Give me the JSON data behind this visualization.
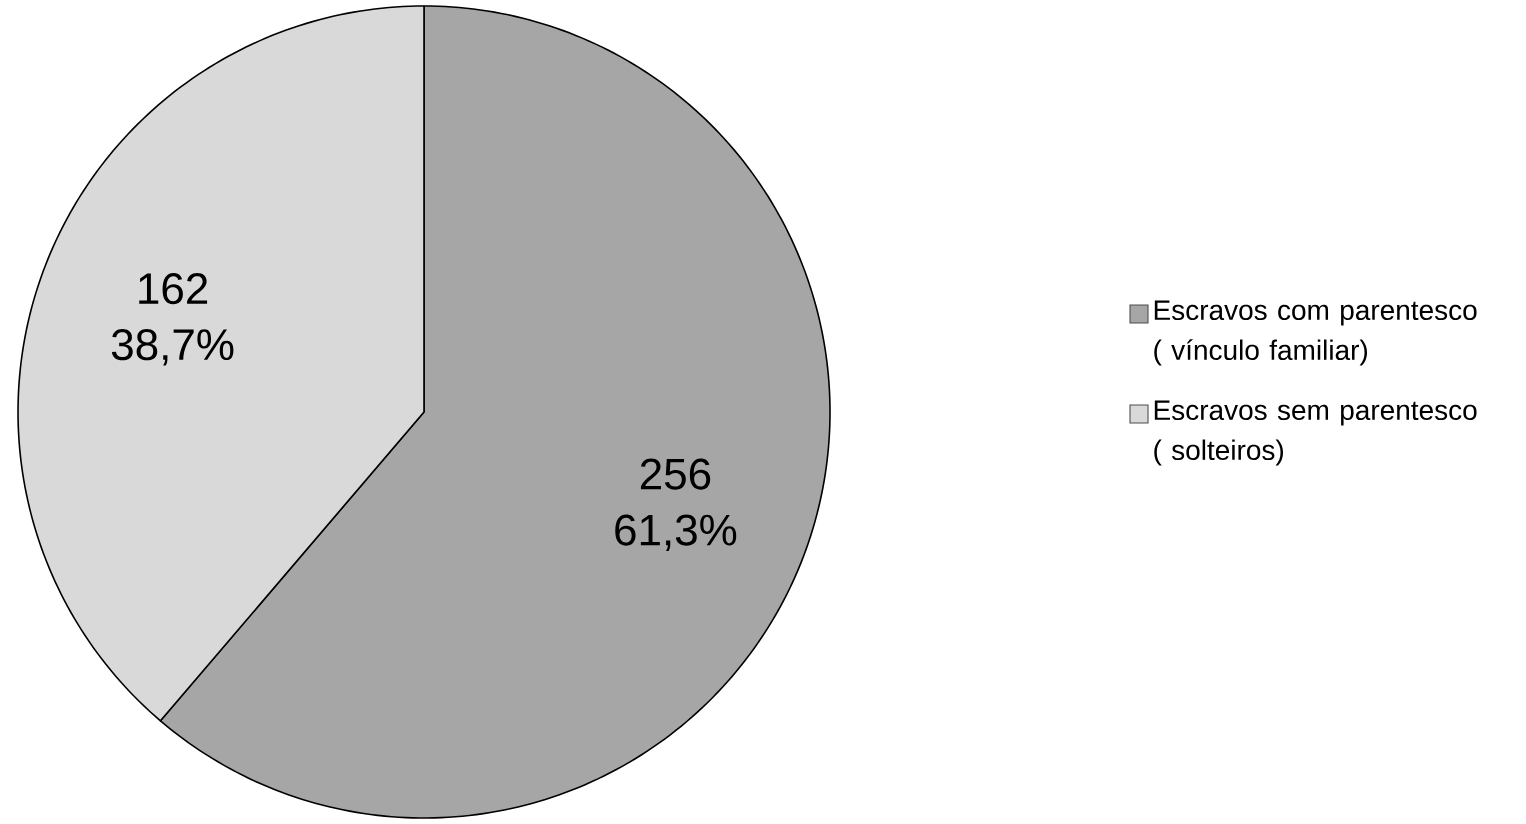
{
  "chart_data": {
    "type": "pie",
    "categories": [
      "Escravos com parentesco ( vínculo familiar)",
      "Escravos sem parentesco ( solteiros)"
    ],
    "values": [
      256,
      162
    ],
    "value_labels": [
      "256 61,3%",
      "162 38,7%"
    ],
    "colors": [
      "#a6a6a6",
      "#d9d9d9"
    ],
    "legend": "right"
  }
}
